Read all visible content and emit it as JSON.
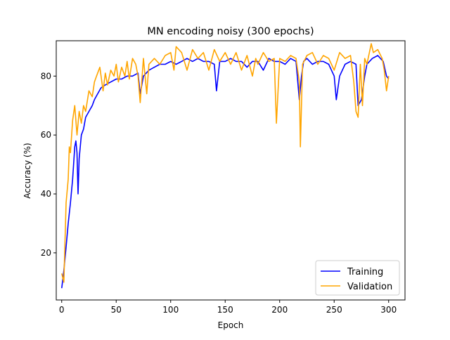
{
  "chart_data": {
    "type": "line",
    "title": "MN encoding noisy (300 epochs)",
    "xlabel": "Epoch",
    "ylabel": "Accuracy (%)",
    "xlim": [
      -5,
      315
    ],
    "ylim": [
      4,
      92
    ],
    "xticks": [
      0,
      50,
      100,
      150,
      200,
      250,
      300
    ],
    "yticks": [
      20,
      40,
      60,
      80
    ],
    "legend": "lower right",
    "grid": false,
    "series": [
      {
        "name": "Training",
        "color": "#0000ff",
        "points": [
          [
            0,
            8
          ],
          [
            2,
            14
          ],
          [
            4,
            22
          ],
          [
            6,
            30
          ],
          [
            8,
            37
          ],
          [
            10,
            45
          ],
          [
            12,
            56
          ],
          [
            13,
            58
          ],
          [
            14,
            54
          ],
          [
            15,
            40
          ],
          [
            16,
            52
          ],
          [
            18,
            60
          ],
          [
            20,
            62
          ],
          [
            22,
            66
          ],
          [
            25,
            68
          ],
          [
            28,
            70
          ],
          [
            30,
            72
          ],
          [
            33,
            74
          ],
          [
            36,
            76
          ],
          [
            40,
            77
          ],
          [
            45,
            78
          ],
          [
            50,
            79
          ],
          [
            55,
            79
          ],
          [
            60,
            80
          ],
          [
            65,
            80
          ],
          [
            70,
            81
          ],
          [
            72,
            74
          ],
          [
            75,
            80
          ],
          [
            80,
            82
          ],
          [
            85,
            83
          ],
          [
            90,
            84
          ],
          [
            95,
            84
          ],
          [
            100,
            85
          ],
          [
            105,
            84
          ],
          [
            110,
            85
          ],
          [
            115,
            86
          ],
          [
            120,
            85
          ],
          [
            125,
            86
          ],
          [
            130,
            85
          ],
          [
            135,
            85
          ],
          [
            140,
            84
          ],
          [
            142,
            75
          ],
          [
            145,
            85
          ],
          [
            150,
            85
          ],
          [
            155,
            86
          ],
          [
            160,
            85
          ],
          [
            165,
            85
          ],
          [
            170,
            83
          ],
          [
            175,
            85
          ],
          [
            180,
            85
          ],
          [
            185,
            82
          ],
          [
            190,
            86
          ],
          [
            195,
            85
          ],
          [
            200,
            85
          ],
          [
            205,
            84
          ],
          [
            210,
            86
          ],
          [
            215,
            85
          ],
          [
            218,
            72
          ],
          [
            220,
            80
          ],
          [
            222,
            85
          ],
          [
            225,
            86
          ],
          [
            230,
            84
          ],
          [
            235,
            85
          ],
          [
            240,
            85
          ],
          [
            245,
            84
          ],
          [
            250,
            80
          ],
          [
            252,
            72
          ],
          [
            255,
            80
          ],
          [
            260,
            84
          ],
          [
            265,
            85
          ],
          [
            270,
            84
          ],
          [
            272,
            70
          ],
          [
            275,
            72
          ],
          [
            278,
            80
          ],
          [
            280,
            84
          ],
          [
            285,
            86
          ],
          [
            290,
            87
          ],
          [
            295,
            85
          ],
          [
            298,
            80
          ],
          [
            300,
            79
          ]
        ]
      },
      {
        "name": "Validation",
        "color": "#ffa500",
        "points": [
          [
            0,
            13
          ],
          [
            2,
            10
          ],
          [
            4,
            37
          ],
          [
            6,
            45
          ],
          [
            7,
            56
          ],
          [
            8,
            54
          ],
          [
            10,
            65
          ],
          [
            12,
            70
          ],
          [
            14,
            60
          ],
          [
            16,
            68
          ],
          [
            18,
            64
          ],
          [
            20,
            70
          ],
          [
            22,
            68
          ],
          [
            25,
            75
          ],
          [
            28,
            73
          ],
          [
            30,
            78
          ],
          [
            32,
            80
          ],
          [
            35,
            83
          ],
          [
            38,
            75
          ],
          [
            40,
            81
          ],
          [
            42,
            77
          ],
          [
            45,
            82
          ],
          [
            48,
            80
          ],
          [
            50,
            84
          ],
          [
            52,
            78
          ],
          [
            55,
            83
          ],
          [
            58,
            80
          ],
          [
            60,
            85
          ],
          [
            62,
            79
          ],
          [
            65,
            86
          ],
          [
            68,
            84
          ],
          [
            70,
            80
          ],
          [
            72,
            71
          ],
          [
            75,
            86
          ],
          [
            78,
            74
          ],
          [
            80,
            84
          ],
          [
            85,
            86
          ],
          [
            90,
            84
          ],
          [
            95,
            87
          ],
          [
            100,
            88
          ],
          [
            103,
            82
          ],
          [
            105,
            90
          ],
          [
            110,
            88
          ],
          [
            115,
            82
          ],
          [
            120,
            89
          ],
          [
            125,
            86
          ],
          [
            130,
            88
          ],
          [
            135,
            82
          ],
          [
            140,
            89
          ],
          [
            145,
            85
          ],
          [
            150,
            88
          ],
          [
            155,
            84
          ],
          [
            160,
            88
          ],
          [
            165,
            82
          ],
          [
            170,
            87
          ],
          [
            175,
            80
          ],
          [
            178,
            86
          ],
          [
            180,
            84
          ],
          [
            185,
            88
          ],
          [
            190,
            85
          ],
          [
            195,
            86
          ],
          [
            197,
            64
          ],
          [
            200,
            86
          ],
          [
            205,
            85
          ],
          [
            210,
            87
          ],
          [
            215,
            86
          ],
          [
            218,
            78
          ],
          [
            219,
            56
          ],
          [
            221,
            84
          ],
          [
            225,
            87
          ],
          [
            230,
            88
          ],
          [
            235,
            84
          ],
          [
            240,
            87
          ],
          [
            245,
            86
          ],
          [
            250,
            82
          ],
          [
            255,
            88
          ],
          [
            260,
            86
          ],
          [
            265,
            87
          ],
          [
            268,
            78
          ],
          [
            270,
            68
          ],
          [
            272,
            66
          ],
          [
            274,
            84
          ],
          [
            276,
            70
          ],
          [
            278,
            86
          ],
          [
            280,
            84
          ],
          [
            284,
            91
          ],
          [
            286,
            88
          ],
          [
            290,
            89
          ],
          [
            294,
            86
          ],
          [
            296,
            82
          ],
          [
            298,
            75
          ],
          [
            300,
            80
          ]
        ]
      }
    ]
  }
}
